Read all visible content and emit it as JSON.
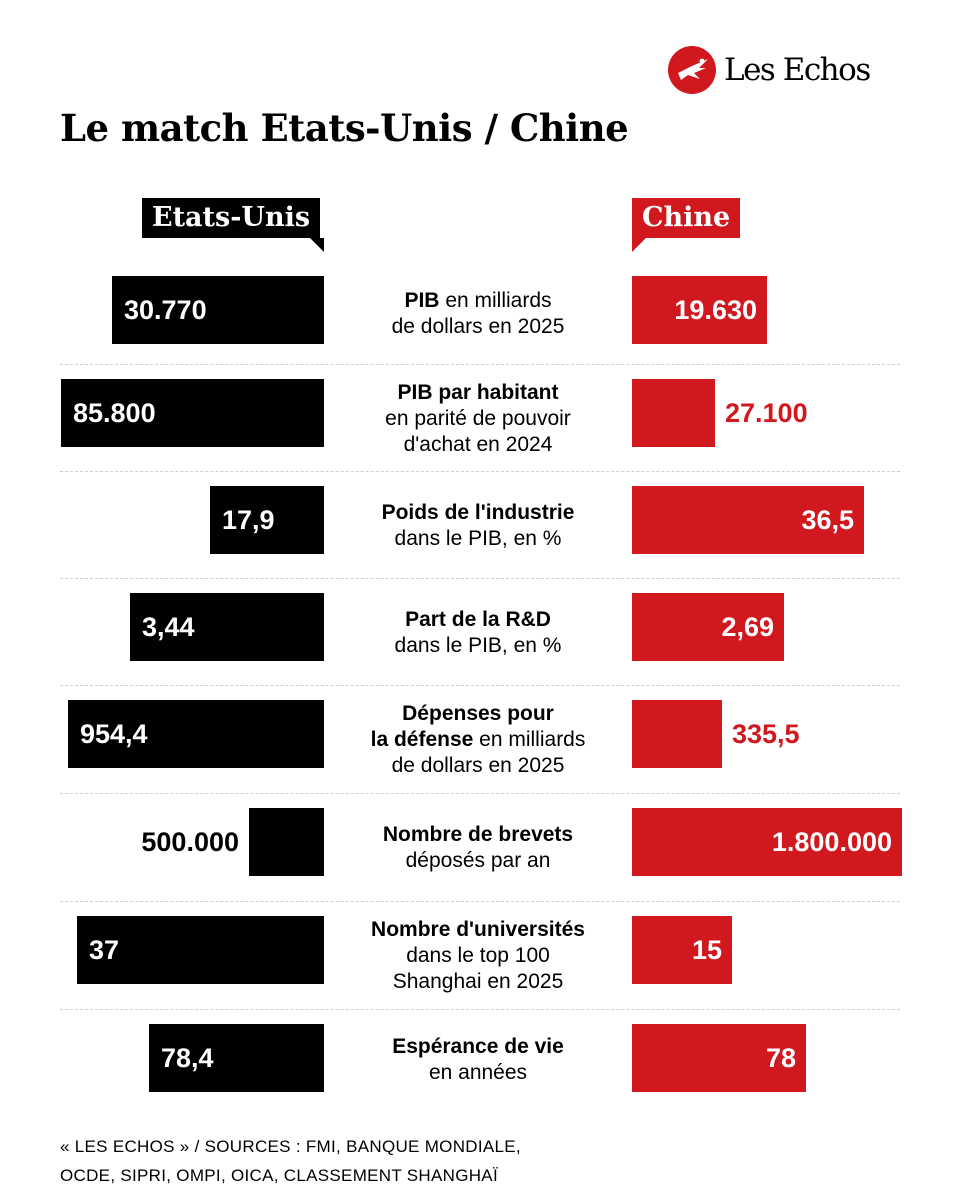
{
  "brand": {
    "name": "Les Echos"
  },
  "title": "Le match Etats-Unis / Chine",
  "colors": {
    "us": "#000000",
    "cn": "#d0181e"
  },
  "chart_data": {
    "type": "bar",
    "layout": "butterfly",
    "series": [
      {
        "name": "Etats-Unis",
        "color": "#000000"
      },
      {
        "name": "Chine",
        "color": "#d0181e"
      }
    ],
    "rows": [
      {
        "label": [
          [
            {
              "t": "PIB",
              "b": true
            },
            {
              "t": " en milliards"
            }
          ],
          [
            {
              "t": "de dollars en 2025"
            }
          ]
        ],
        "us_label": "30.770",
        "us": 30770,
        "cn_label": "19.630",
        "cn": 19630
      },
      {
        "label": [
          [
            {
              "t": "PIB par habitant",
              "b": true
            }
          ],
          [
            {
              "t": "en parité de pouvoir"
            }
          ],
          [
            {
              "t": "d'achat en 2024"
            }
          ]
        ],
        "us_label": "85.800",
        "us": 85800,
        "cn_label": "27.100",
        "cn": 27100
      },
      {
        "label": [
          [
            {
              "t": "Poids de l'industrie",
              "b": true
            }
          ],
          [
            {
              "t": "dans le PIB, en %"
            }
          ]
        ],
        "us_label": "17,9",
        "us": 17.9,
        "cn_label": "36,5",
        "cn": 36.5
      },
      {
        "label": [
          [
            {
              "t": "Part de la R&D",
              "b": true
            }
          ],
          [
            {
              "t": "dans le PIB, en %"
            }
          ]
        ],
        "us_label": "3,44",
        "us": 3.44,
        "cn_label": "2,69",
        "cn": 2.69
      },
      {
        "label": [
          [
            {
              "t": "Dépenses pour",
              "b": true
            }
          ],
          [
            {
              "t": "la défense",
              "b": true
            },
            {
              "t": " en milliards"
            }
          ],
          [
            {
              "t": "de dollars en 2025"
            }
          ]
        ],
        "us_label": "954,4",
        "us": 954.4,
        "cn_label": "335,5",
        "cn": 335.5
      },
      {
        "label": [
          [
            {
              "t": "Nombre de brevets",
              "b": true
            }
          ],
          [
            {
              "t": "déposés par an"
            }
          ]
        ],
        "us_label": "500.000",
        "us": 500000,
        "cn_label": "1.800.000",
        "cn": 1800000
      },
      {
        "label": [
          [
            {
              "t": "Nombre d'universités",
              "b": true
            }
          ],
          [
            {
              "t": "dans le top 100"
            }
          ],
          [
            {
              "t": "Shanghai en 2025"
            }
          ]
        ],
        "us_label": "37",
        "us": 37,
        "cn_label": "15",
        "cn": 15
      },
      {
        "label": [
          [
            {
              "t": "Espérance de vie",
              "b": true
            }
          ],
          [
            {
              "t": "en années"
            }
          ]
        ],
        "us_label": "78,4",
        "us": 78.4,
        "cn_label": "78",
        "cn": 78
      }
    ]
  },
  "source": {
    "line1": "« LES ECHOS » / SOURCES : FMI, BANQUE MONDIALE,",
    "line2": "OCDE, SIPRI, OMPI, OICA, CLASSEMENT SHANGHAÏ"
  }
}
